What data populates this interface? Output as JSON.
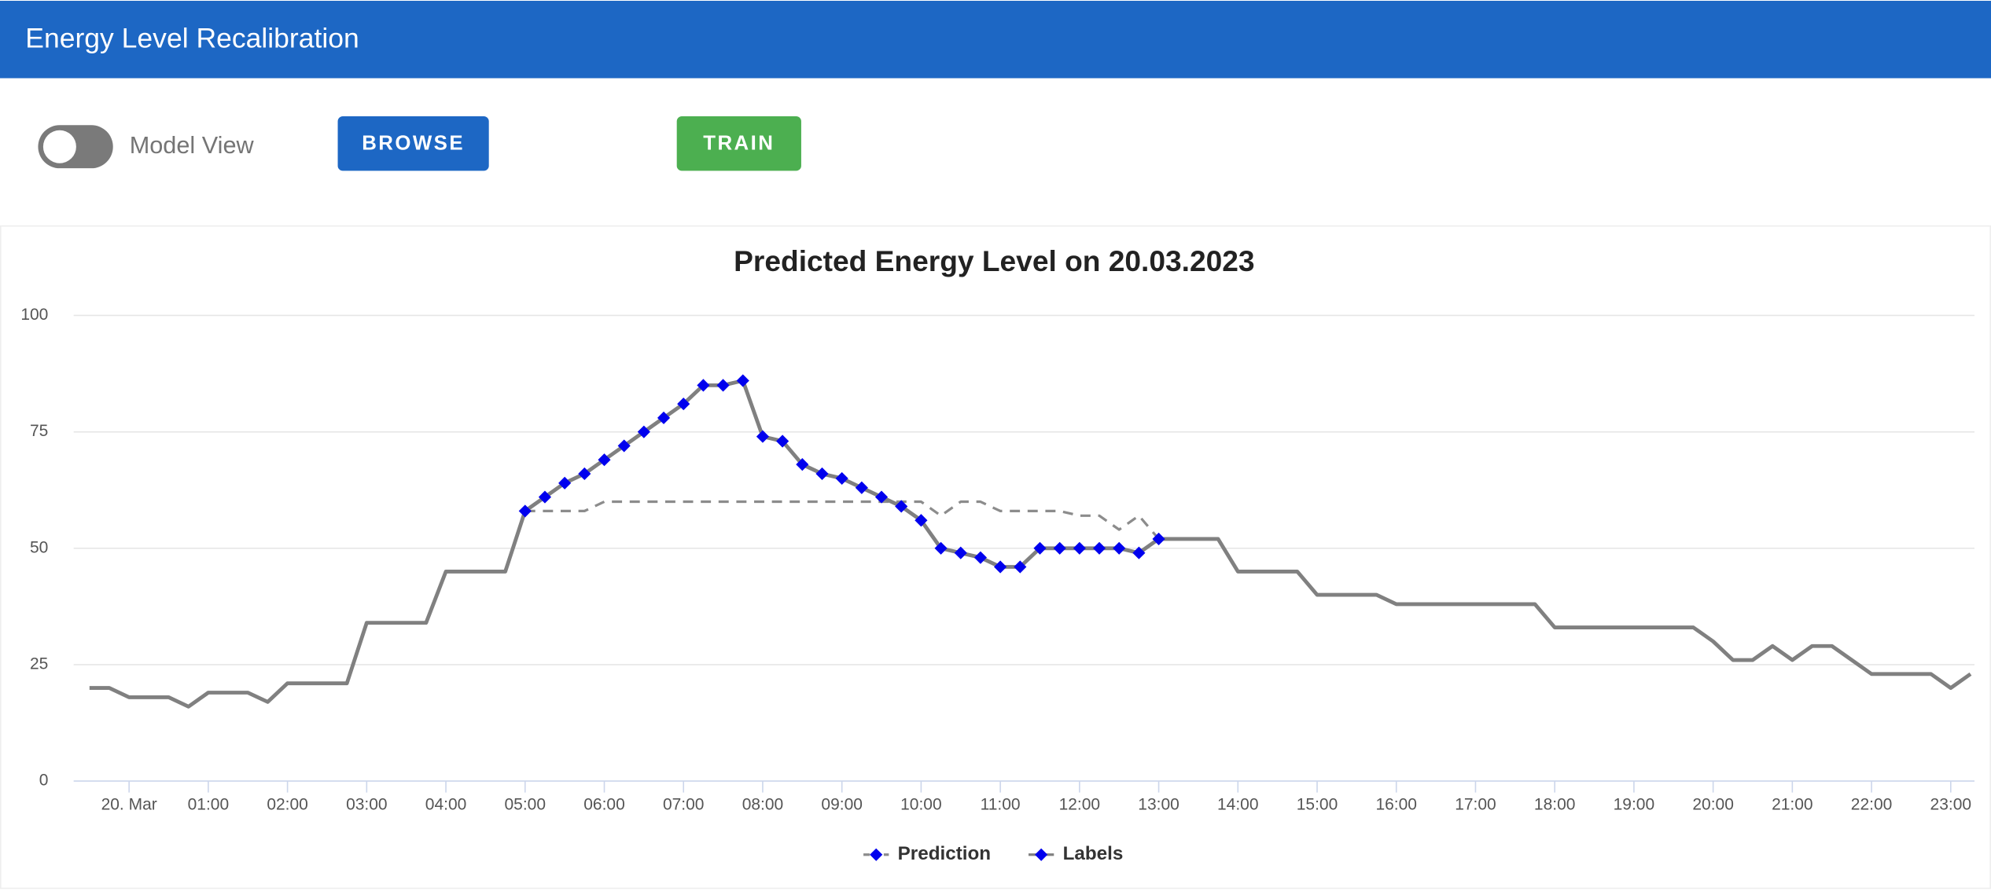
{
  "header": {
    "title": "Energy Level Recalibration"
  },
  "controls": {
    "toggle_label": "Model View",
    "buttons": [
      "BROWSE",
      "TRAIN"
    ]
  },
  "chart_data": {
    "type": "line",
    "title": "Predicted Energy Level on 20.03.2023",
    "x": [
      -0.5,
      -0.25,
      0,
      0.25,
      0.5,
      0.75,
      1,
      1.25,
      1.5,
      1.75,
      2,
      2.25,
      2.5,
      2.75,
      3,
      3.25,
      3.5,
      3.75,
      4,
      4.25,
      4.5,
      4.75,
      5,
      5.25,
      5.5,
      5.75,
      6,
      6.25,
      6.5,
      6.75,
      7,
      7.25,
      7.5,
      7.75,
      8,
      8.25,
      8.5,
      8.75,
      9,
      9.25,
      9.5,
      9.75,
      10,
      10.25,
      10.5,
      10.75,
      11,
      11.25,
      11.5,
      11.75,
      12,
      12.25,
      12.5,
      12.75,
      13,
      13.25,
      13.5,
      13.75,
      14,
      14.25,
      14.5,
      14.75,
      15,
      15.25,
      15.5,
      15.75,
      16,
      16.25,
      16.5,
      16.75,
      17,
      17.25,
      17.5,
      17.75,
      18,
      18.25,
      18.5,
      18.75,
      19,
      19.25,
      19.5,
      19.75,
      20,
      20.25,
      20.5,
      20.75,
      21,
      21.25,
      21.5,
      21.75,
      22,
      22.25,
      22.5,
      22.75,
      23,
      23.25
    ],
    "series": [
      {
        "name": "Prediction",
        "color": "#8c8c8c",
        "line_style": "dashed",
        "values": [
          null,
          null,
          null,
          null,
          null,
          null,
          null,
          null,
          null,
          null,
          null,
          null,
          null,
          null,
          null,
          null,
          null,
          null,
          null,
          null,
          null,
          null,
          58,
          58,
          58,
          58,
          60,
          60,
          60,
          60,
          60,
          60,
          60,
          60,
          60,
          60,
          60,
          60,
          60,
          60,
          60,
          60,
          60,
          57,
          60,
          60,
          58,
          58,
          58,
          58,
          57,
          57,
          54,
          57,
          52,
          null,
          null,
          null,
          null,
          null,
          null,
          null,
          null,
          null,
          null,
          null,
          null,
          null,
          null,
          null,
          null,
          null,
          null,
          null,
          null,
          null,
          null,
          null,
          null,
          null,
          null,
          null,
          null,
          null,
          null,
          null,
          null,
          null,
          null,
          null,
          null,
          null,
          null,
          null,
          null,
          null
        ]
      },
      {
        "name": "Labels",
        "color": "#808080",
        "line_style": "solid",
        "values": [
          20,
          20,
          18,
          18,
          18,
          16,
          19,
          19,
          19,
          17,
          21,
          21,
          21,
          21,
          34,
          34,
          34,
          34,
          45,
          45,
          45,
          45,
          58,
          61,
          64,
          66,
          69,
          72,
          75,
          78,
          81,
          85,
          85,
          86,
          74,
          73,
          68,
          66,
          65,
          63,
          61,
          59,
          56,
          50,
          49,
          48,
          46,
          46,
          50,
          50,
          50,
          50,
          50,
          49,
          52,
          52,
          52,
          52,
          45,
          45,
          45,
          45,
          40,
          40,
          40,
          40,
          38,
          38,
          38,
          38,
          38,
          38,
          38,
          38,
          33,
          33,
          33,
          33,
          33,
          33,
          33,
          33,
          30,
          26,
          26,
          29,
          26,
          29,
          29,
          26,
          23,
          23,
          23,
          23,
          20,
          23
        ]
      }
    ],
    "marker_color": "#0000ee",
    "xlim": [
      -0.7,
      23.3
    ],
    "xticks": [
      {
        "value": 0,
        "label": "20. Mar"
      },
      {
        "value": 1,
        "label": "01:00"
      },
      {
        "value": 2,
        "label": "02:00"
      },
      {
        "value": 3,
        "label": "03:00"
      },
      {
        "value": 4,
        "label": "04:00"
      },
      {
        "value": 5,
        "label": "05:00"
      },
      {
        "value": 6,
        "label": "06:00"
      },
      {
        "value": 7,
        "label": "07:00"
      },
      {
        "value": 8,
        "label": "08:00"
      },
      {
        "value": 9,
        "label": "09:00"
      },
      {
        "value": 10,
        "label": "10:00"
      },
      {
        "value": 11,
        "label": "11:00"
      },
      {
        "value": 12,
        "label": "12:00"
      },
      {
        "value": 13,
        "label": "13:00"
      },
      {
        "value": 14,
        "label": "14:00"
      },
      {
        "value": 15,
        "label": "15:00"
      },
      {
        "value": 16,
        "label": "16:00"
      },
      {
        "value": 17,
        "label": "17:00"
      },
      {
        "value": 18,
        "label": "18:00"
      },
      {
        "value": 19,
        "label": "19:00"
      },
      {
        "value": 20,
        "label": "20:00"
      },
      {
        "value": 21,
        "label": "21:00"
      },
      {
        "value": 22,
        "label": "22:00"
      },
      {
        "value": 23,
        "label": "23:00"
      }
    ],
    "ylim": [
      0,
      100
    ],
    "yticks": [
      0,
      25,
      50,
      75,
      100
    ],
    "grid": true
  }
}
